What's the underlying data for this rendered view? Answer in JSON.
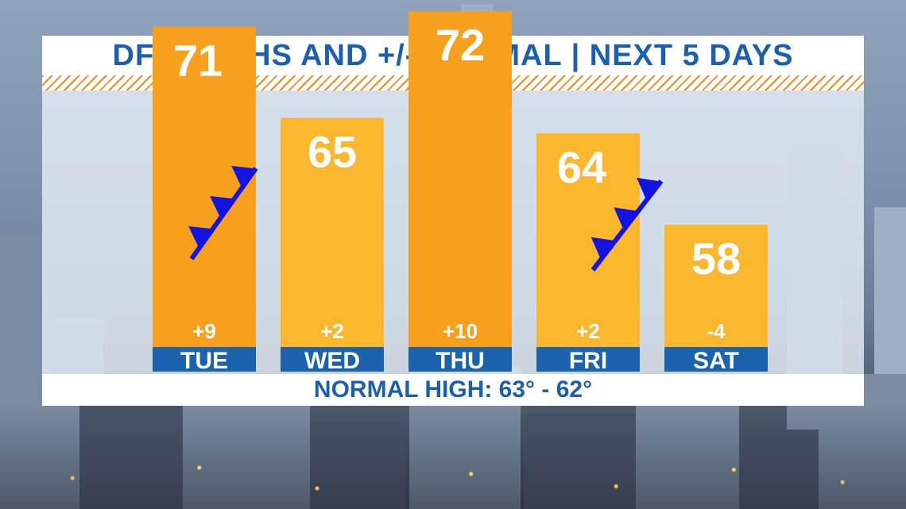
{
  "title": "DFW HIGHS AND +/- NORMAL | NEXT 5 DAYS",
  "footer": "NORMAL HIGH: 63° - 62°",
  "colors": {
    "title_text": "#1b5fb0",
    "bar_warm": "#f7a01e",
    "bar_mild": "#fbb72e",
    "day_band": "#1c63ae",
    "front": "#1414e0",
    "hatch": "#f28a1c"
  },
  "icons": [
    "cold-front-symbol"
  ],
  "chart_data": {
    "type": "bar",
    "categories": [
      "TUE",
      "WED",
      "THU",
      "FRI",
      "SAT"
    ],
    "values": [
      71,
      65,
      72,
      64,
      58
    ],
    "departures": [
      "+9",
      "+2",
      "+10",
      "+2",
      "-4"
    ],
    "title": "DFW HIGHS AND +/- NORMAL | NEXT 5 DAYS",
    "annotations": [
      "NORMAL HIGH: 63° - 62°"
    ],
    "cold_fronts": [
      "TUE",
      "FRI"
    ],
    "grid": false,
    "legend": "none"
  }
}
